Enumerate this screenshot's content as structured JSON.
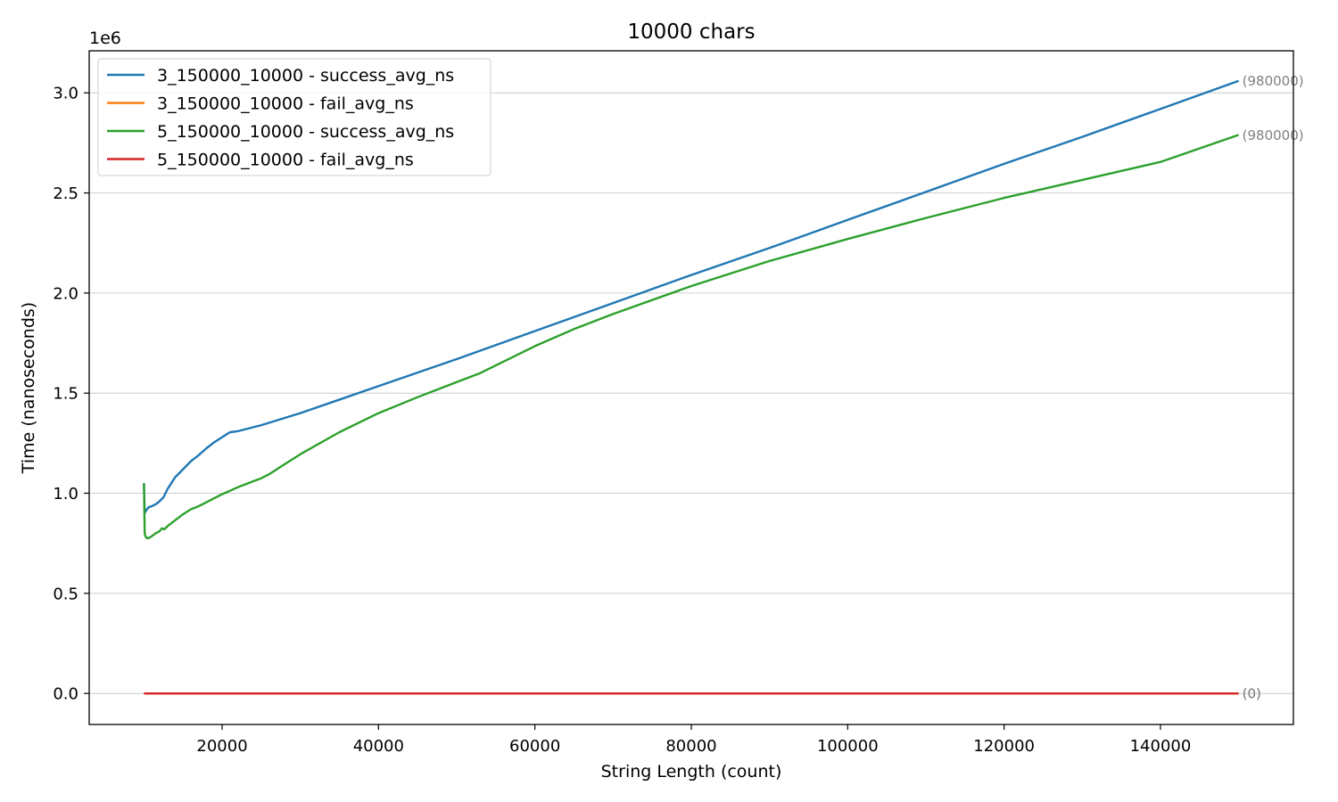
{
  "chart_data": {
    "type": "line",
    "title": "10000 chars",
    "xlabel": "String Length (count)",
    "ylabel": "Time (nanoseconds)",
    "y_offset_label": "1e6",
    "xlim": [
      3000,
      157000
    ],
    "ylim": [
      -0.155,
      3.21
    ],
    "x_ticks": [
      20000,
      40000,
      60000,
      80000,
      100000,
      120000,
      140000
    ],
    "x_tick_labels": [
      "20000",
      "40000",
      "60000",
      "80000",
      "100000",
      "120000",
      "140000"
    ],
    "y_ticks": [
      0.0,
      0.5,
      1.0,
      1.5,
      2.0,
      2.5,
      3.0
    ],
    "y_tick_labels": [
      "0.0",
      "0.5",
      "1.0",
      "1.5",
      "2.0",
      "2.5",
      "3.0"
    ],
    "grid": "horizontal",
    "legend_position": "top-left",
    "series": [
      {
        "name": "3_150000_10000 - success_avg_ns",
        "color": "#1f77b4",
        "end_label": "(980000)",
        "x": [
          10000,
          10100,
          10200,
          10400,
          10600,
          11000,
          11500,
          12000,
          12500,
          13000,
          13500,
          14000,
          15000,
          16000,
          17000,
          18000,
          19000,
          20000,
          21000,
          22000,
          25000,
          30000,
          40000,
          50000,
          60000,
          70000,
          80000,
          90000,
          100000,
          110000,
          120000,
          130000,
          140000,
          150000
        ],
        "y": [
          1.05,
          0.9,
          0.91,
          0.92,
          0.93,
          0.935,
          0.945,
          0.96,
          0.98,
          1.02,
          1.05,
          1.08,
          1.12,
          1.16,
          1.19,
          1.225,
          1.255,
          1.28,
          1.305,
          1.31,
          1.34,
          1.4,
          1.535,
          1.67,
          1.81,
          1.95,
          2.09,
          2.225,
          2.365,
          2.505,
          2.645,
          2.78,
          2.92,
          3.06
        ]
      },
      {
        "name": "3_150000_10000 - fail_avg_ns",
        "color": "#ff7f0e",
        "end_label": "(0)",
        "x": [
          10000,
          150000
        ],
        "y": [
          0.0,
          0.0
        ]
      },
      {
        "name": "5_150000_10000 - success_avg_ns",
        "color": "#2ca02c",
        "end_label": "(980000)",
        "x": [
          10000,
          10100,
          10200,
          10400,
          10600,
          11000,
          11500,
          12000,
          12300,
          12600,
          13000,
          13500,
          14000,
          15000,
          16000,
          17000,
          18000,
          20000,
          22000,
          24000,
          25000,
          26000,
          28000,
          30000,
          35000,
          40000,
          45000,
          50000,
          53000,
          60000,
          65000,
          70000,
          80000,
          90000,
          100000,
          110000,
          120000,
          130000,
          140000,
          150000
        ],
        "y": [
          1.05,
          0.8,
          0.785,
          0.775,
          0.776,
          0.785,
          0.8,
          0.81,
          0.825,
          0.82,
          0.835,
          0.85,
          0.865,
          0.895,
          0.92,
          0.935,
          0.955,
          0.995,
          1.03,
          1.06,
          1.075,
          1.095,
          1.145,
          1.195,
          1.305,
          1.4,
          1.48,
          1.555,
          1.6,
          1.735,
          1.82,
          1.895,
          2.035,
          2.16,
          2.27,
          2.375,
          2.475,
          2.565,
          2.655,
          2.79
        ]
      },
      {
        "name": "5_150000_10000 - fail_avg_ns",
        "color": "#d62728",
        "end_label": "(0)",
        "x": [
          10000,
          150000
        ],
        "y": [
          0.0,
          0.0
        ]
      }
    ]
  }
}
